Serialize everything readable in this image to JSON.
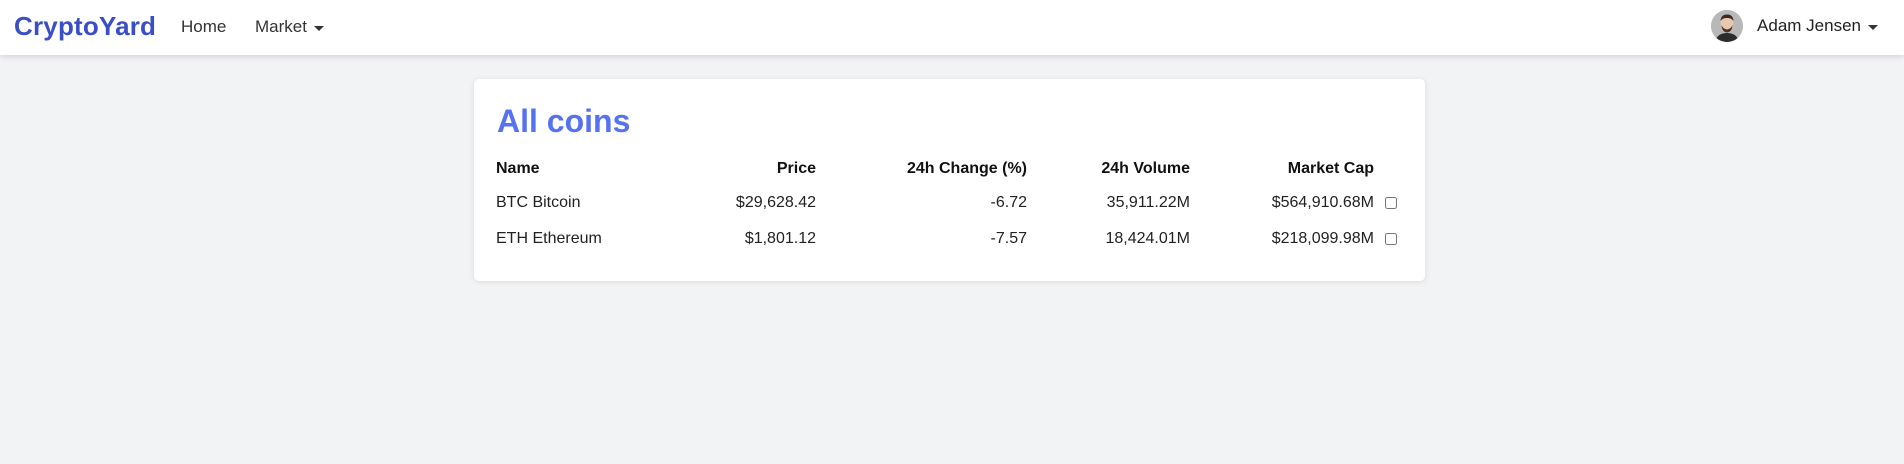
{
  "navbar": {
    "brand": "CryptoYard",
    "links": [
      {
        "label": "Home"
      },
      {
        "label": "Market"
      }
    ],
    "user": {
      "name": "Adam Jensen"
    }
  },
  "main": {
    "title": "All coins",
    "columns": [
      "Name",
      "Price",
      "24h Change (%)",
      "24h Volume",
      "Market Cap"
    ],
    "rows": [
      {
        "name": "BTC Bitcoin",
        "price": "$29,628.42",
        "change": "-6.72",
        "volume": "35,911.22M",
        "market_cap": "$564,910.68M",
        "checked": false
      },
      {
        "name": "ETH Ethereum",
        "price": "$1,801.12",
        "change": "-7.57",
        "volume": "18,424.01M",
        "market_cap": "$218,099.98M",
        "checked": false
      }
    ]
  },
  "colors": {
    "brand": "#3b4fc4",
    "title": "#5572f0",
    "negative": "#e5484d",
    "background": "#f2f3f5"
  }
}
